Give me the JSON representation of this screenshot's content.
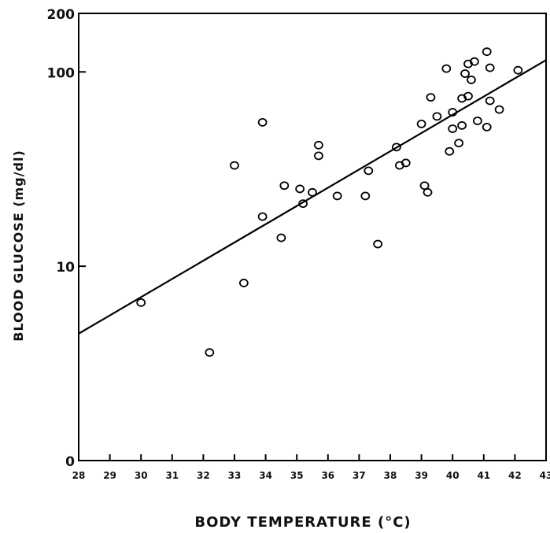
{
  "chart_data": {
    "type": "scatter",
    "title": "",
    "xlabel": "BODY TEMPERATURE (°C)",
    "ylabel": "BLOOD GLUCOSE (mg/dl)",
    "xlim": [
      28,
      43
    ],
    "y_scale": "log",
    "y_range_note": "axis bottom labeled 0",
    "x_ticks": [
      28,
      29,
      30,
      31,
      32,
      33,
      34,
      35,
      36,
      37,
      38,
      39,
      40,
      41,
      42,
      43
    ],
    "x_tick_labels": [
      "28",
      "29",
      "30",
      "31",
      "32",
      "33",
      "34",
      "35",
      "36",
      "37",
      "38",
      "39",
      "40",
      "41",
      "42",
      "43"
    ],
    "y_ticks": [
      {
        "label": "200",
        "value": 200
      },
      {
        "label": "100",
        "value": 100
      },
      {
        "label": "10",
        "value": 10
      },
      {
        "label": "0",
        "value": 1
      }
    ],
    "grid": false,
    "series": [
      {
        "points": [
          [
            30.0,
            6.5
          ],
          [
            32.2,
            3.6
          ],
          [
            33.0,
            33
          ],
          [
            33.3,
            8.2
          ],
          [
            33.9,
            55
          ],
          [
            33.9,
            18
          ],
          [
            34.5,
            14
          ],
          [
            34.6,
            26
          ],
          [
            35.1,
            25
          ],
          [
            35.2,
            21
          ],
          [
            35.5,
            24
          ],
          [
            35.7,
            42
          ],
          [
            35.7,
            37
          ],
          [
            36.3,
            23
          ],
          [
            37.2,
            23
          ],
          [
            37.3,
            31
          ],
          [
            37.6,
            13
          ],
          [
            38.2,
            41
          ],
          [
            38.3,
            33
          ],
          [
            38.5,
            34
          ],
          [
            39.0,
            54
          ],
          [
            39.1,
            26
          ],
          [
            39.2,
            24
          ],
          [
            39.3,
            74
          ],
          [
            39.5,
            59
          ],
          [
            39.8,
            104
          ],
          [
            39.9,
            39
          ],
          [
            40.0,
            62
          ],
          [
            40.0,
            51
          ],
          [
            40.2,
            43
          ],
          [
            40.3,
            53
          ],
          [
            40.3,
            73
          ],
          [
            40.4,
            98
          ],
          [
            40.5,
            110
          ],
          [
            40.5,
            75
          ],
          [
            40.6,
            91
          ],
          [
            40.7,
            113
          ],
          [
            40.8,
            56
          ],
          [
            41.1,
            52
          ],
          [
            41.1,
            127
          ],
          [
            41.2,
            105
          ],
          [
            41.2,
            71
          ],
          [
            41.5,
            64
          ],
          [
            42.1,
            102
          ]
        ]
      }
    ],
    "regression_line": {
      "x": [
        28,
        43
      ],
      "y": [
        4.5,
        115
      ]
    }
  }
}
